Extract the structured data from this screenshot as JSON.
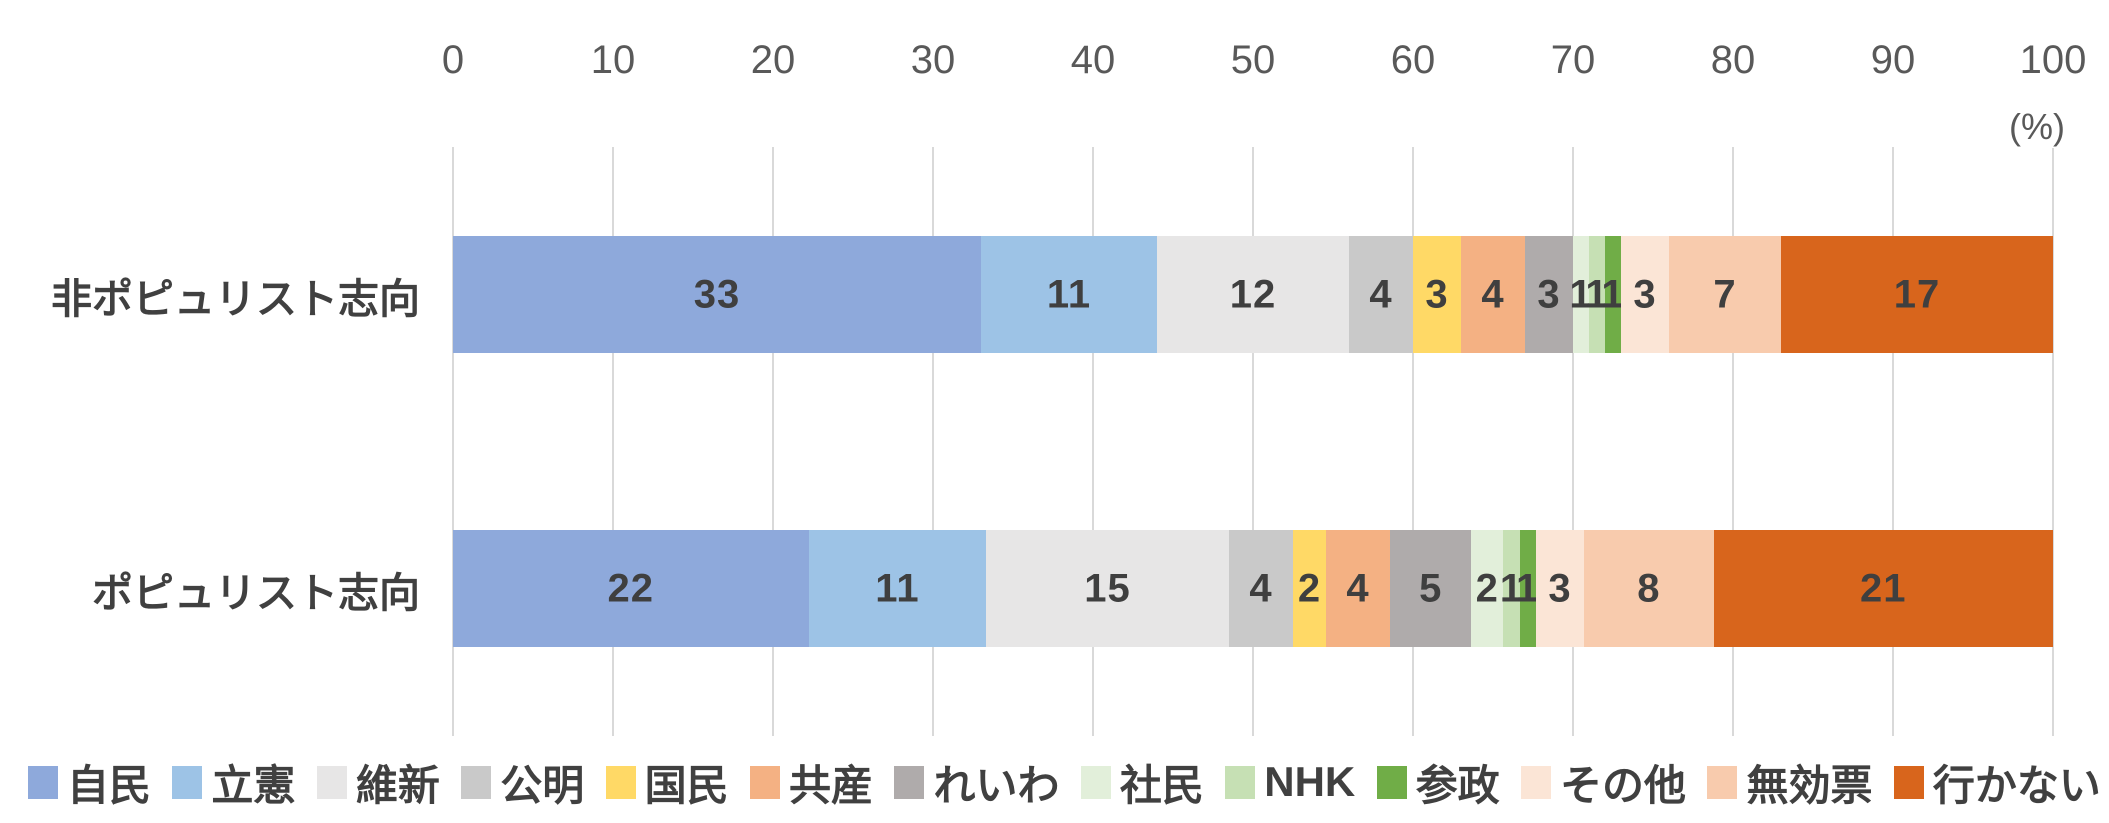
{
  "chart_data": {
    "type": "bar",
    "orientation": "horizontal",
    "stacked": true,
    "grid": true,
    "legend_position": "bottom",
    "unit_label": "(%)",
    "xlim": [
      0,
      100
    ],
    "x_ticks": [
      "0",
      "10",
      "20",
      "30",
      "40",
      "50",
      "60",
      "70",
      "80",
      "90",
      "100"
    ],
    "categories": [
      "非ポピュリスト志向",
      "ポピュリスト志向"
    ],
    "series": [
      {
        "name": "自民",
        "color": "#8EA9DB",
        "values": [
          33,
          22
        ]
      },
      {
        "name": "立憲",
        "color": "#9DC3E6",
        "values": [
          11,
          11
        ]
      },
      {
        "name": "維新",
        "color": "#E7E6E6",
        "values": [
          12,
          15
        ]
      },
      {
        "name": "公明",
        "color": "#C9C9C9",
        "values": [
          4,
          4
        ]
      },
      {
        "name": "国民",
        "color": "#FFD966",
        "values": [
          3,
          2
        ]
      },
      {
        "name": "共産",
        "color": "#F4B183",
        "values": [
          4,
          4
        ]
      },
      {
        "name": "れいわ",
        "color": "#AFABAB",
        "values": [
          3,
          5
        ]
      },
      {
        "name": "社民",
        "color": "#E2EFDA",
        "values": [
          1,
          2
        ]
      },
      {
        "name": "NHK",
        "color": "#C6E0B4",
        "values": [
          1,
          1
        ]
      },
      {
        "name": "参政",
        "color": "#70AD47",
        "values": [
          1,
          1
        ]
      },
      {
        "name": "その他",
        "color": "#FBE5D6",
        "values": [
          3,
          3
        ]
      },
      {
        "name": "無効票",
        "color": "#F8CBAD",
        "values": [
          7,
          8
        ]
      },
      {
        "name": "行かない",
        "color": "#D8651C",
        "values": [
          17,
          21
        ]
      }
    ]
  }
}
